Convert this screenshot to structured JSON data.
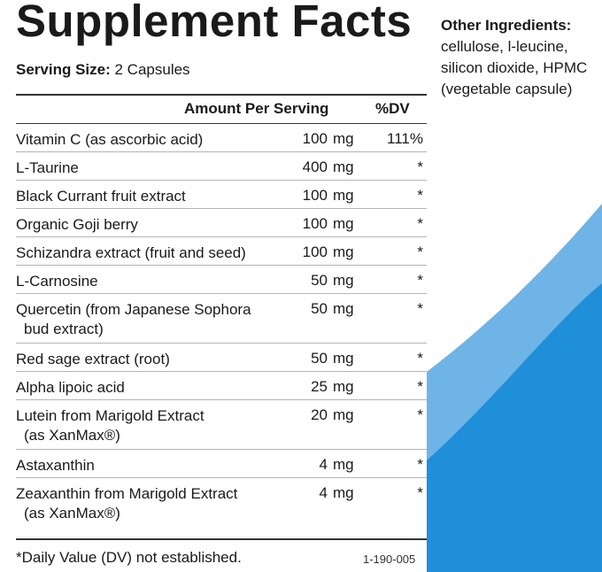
{
  "panel": {
    "title": "Supplement Facts",
    "serving_label": "Serving Size:",
    "serving_value": "2 Capsules",
    "header_amount": "Amount Per Serving",
    "header_dv": "%DV",
    "rows": [
      {
        "name": "Vitamin C (as ascorbic acid)",
        "name2": "",
        "amount": "100",
        "unit": "mg",
        "dv": "111%"
      },
      {
        "name": "L-Taurine",
        "name2": "",
        "amount": "400",
        "unit": "mg",
        "dv": "*"
      },
      {
        "name": "Black Currant fruit extract",
        "name2": "",
        "amount": "100",
        "unit": "mg",
        "dv": "*"
      },
      {
        "name": "Organic Goji berry",
        "name2": "",
        "amount": "100",
        "unit": "mg",
        "dv": "*"
      },
      {
        "name": "Schizandra extract (fruit and seed)",
        "name2": "",
        "amount": "100",
        "unit": "mg",
        "dv": "*"
      },
      {
        "name": "L-Carnosine",
        "name2": "",
        "amount": "50",
        "unit": "mg",
        "dv": "*"
      },
      {
        "name": "Quercetin (from Japanese Sophora",
        "name2": "bud extract)",
        "amount": "50",
        "unit": "mg",
        "dv": "*"
      },
      {
        "name": "Red sage extract (root)",
        "name2": "",
        "amount": "50",
        "unit": "mg",
        "dv": "*"
      },
      {
        "name": "Alpha lipoic acid",
        "name2": "",
        "amount": "25",
        "unit": "mg",
        "dv": "*"
      },
      {
        "name": "Lutein from Marigold Extract",
        "name2": "(as XanMax®)",
        "amount": "20",
        "unit": "mg",
        "dv": "*"
      },
      {
        "name": "Astaxanthin",
        "name2": "",
        "amount": "4",
        "unit": "mg",
        "dv": "*"
      },
      {
        "name": "Zeaxanthin from Marigold Extract",
        "name2": "(as XanMax®)",
        "amount": "4",
        "unit": "mg",
        "dv": "*"
      }
    ],
    "footnote": "*Daily Value (DV) not established.",
    "code": "1-190-005"
  },
  "other": {
    "heading": "Other Ingredients:",
    "lines": [
      "cellulose, l-leucine,",
      "silicon dioxide, HPMC",
      "(vegetable capsule)"
    ]
  },
  "colors": {
    "wave_light": "#6fb4e6",
    "wave_dark": "#1f8fd9"
  }
}
